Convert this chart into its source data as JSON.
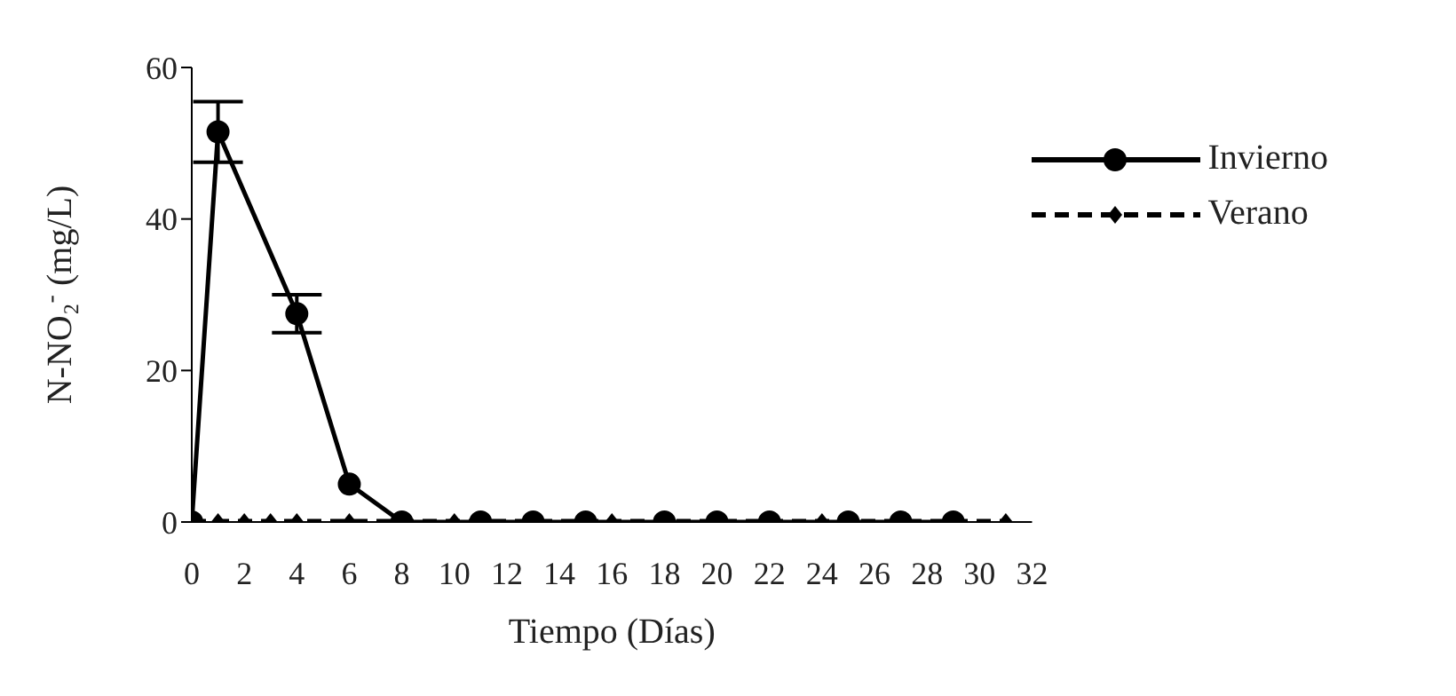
{
  "chart_data": {
    "type": "line",
    "xlabel": "Tiempo (Días)",
    "ylabel": "N-NO₂$^{-}$ (mg/L)",
    "xlim": [
      0,
      32
    ],
    "xticks": [
      0,
      2,
      4,
      6,
      8,
      10,
      12,
      14,
      16,
      18,
      20,
      22,
      24,
      26,
      28,
      30,
      32
    ],
    "ylim": [
      0,
      60
    ],
    "yticks": [
      0,
      20,
      40,
      60
    ],
    "legend": "top right",
    "series": [
      {
        "name": "Invierno",
        "color": "#000000",
        "marker": "circle",
        "line_style": "solid",
        "x": [
          0,
          1,
          4,
          6,
          8,
          11,
          13,
          15,
          18,
          20,
          22,
          25,
          27,
          29
        ],
        "values": [
          0,
          51.5,
          27.5,
          5,
          0,
          0,
          0,
          0,
          0,
          0,
          0,
          0,
          0,
          0
        ],
        "errors": [
          null,
          4,
          2.5,
          null,
          null,
          null,
          null,
          null,
          null,
          null,
          null,
          null,
          null,
          null
        ]
      },
      {
        "name": "Verano",
        "color": "#000000",
        "marker": "diamond",
        "line_style": "dashed",
        "x": [
          0,
          1,
          2,
          3,
          4,
          6,
          10,
          16,
          24,
          31
        ],
        "values": [
          0,
          0,
          0,
          0,
          0,
          0,
          0,
          0,
          0,
          0
        ]
      }
    ]
  }
}
